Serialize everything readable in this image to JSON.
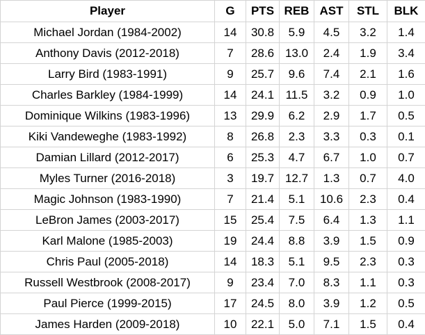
{
  "table": {
    "headers": [
      "Player",
      "G",
      "PTS",
      "REB",
      "AST",
      "STL",
      "BLK"
    ],
    "rows": [
      [
        "Michael Jordan (1984-2002)",
        "14",
        "30.8",
        "5.9",
        "4.5",
        "3.2",
        "1.4"
      ],
      [
        "Anthony Davis (2012-2018)",
        "7",
        "28.6",
        "13.0",
        "2.4",
        "1.9",
        "3.4"
      ],
      [
        "Larry Bird (1983-1991)",
        "9",
        "25.7",
        "9.6",
        "7.4",
        "2.1",
        "1.6"
      ],
      [
        "Charles Barkley (1984-1999)",
        "14",
        "24.1",
        "11.5",
        "3.2",
        "0.9",
        "1.0"
      ],
      [
        "Dominique Wilkins (1983-1996)",
        "13",
        "29.9",
        "6.2",
        "2.9",
        "1.7",
        "0.5"
      ],
      [
        "Kiki Vandeweghe (1983-1992)",
        "8",
        "26.8",
        "2.3",
        "3.3",
        "0.3",
        "0.1"
      ],
      [
        "Damian Lillard (2012-2017)",
        "6",
        "25.3",
        "4.7",
        "6.7",
        "1.0",
        "0.7"
      ],
      [
        "Myles Turner (2016-2018)",
        "3",
        "19.7",
        "12.7",
        "1.3",
        "0.7",
        "4.0"
      ],
      [
        "Magic Johnson (1983-1990)",
        "7",
        "21.4",
        "5.1",
        "10.6",
        "2.3",
        "0.4"
      ],
      [
        "LeBron James (2003-2017)",
        "15",
        "25.4",
        "7.5",
        "6.4",
        "1.3",
        "1.1"
      ],
      [
        "Karl Malone (1985-2003)",
        "19",
        "24.4",
        "8.8",
        "3.9",
        "1.5",
        "0.9"
      ],
      [
        "Chris Paul (2005-2018)",
        "14",
        "18.3",
        "5.1",
        "9.5",
        "2.3",
        "0.3"
      ],
      [
        "Russell Westbrook (2008-2017)",
        "9",
        "23.4",
        "7.0",
        "8.3",
        "1.1",
        "0.3"
      ],
      [
        "Paul Pierce (1999-2015)",
        "17",
        "24.5",
        "8.0",
        "3.9",
        "1.2",
        "0.5"
      ],
      [
        "James Harden (2009-2018)",
        "10",
        "22.1",
        "5.0",
        "7.1",
        "1.5",
        "0.4"
      ]
    ]
  }
}
